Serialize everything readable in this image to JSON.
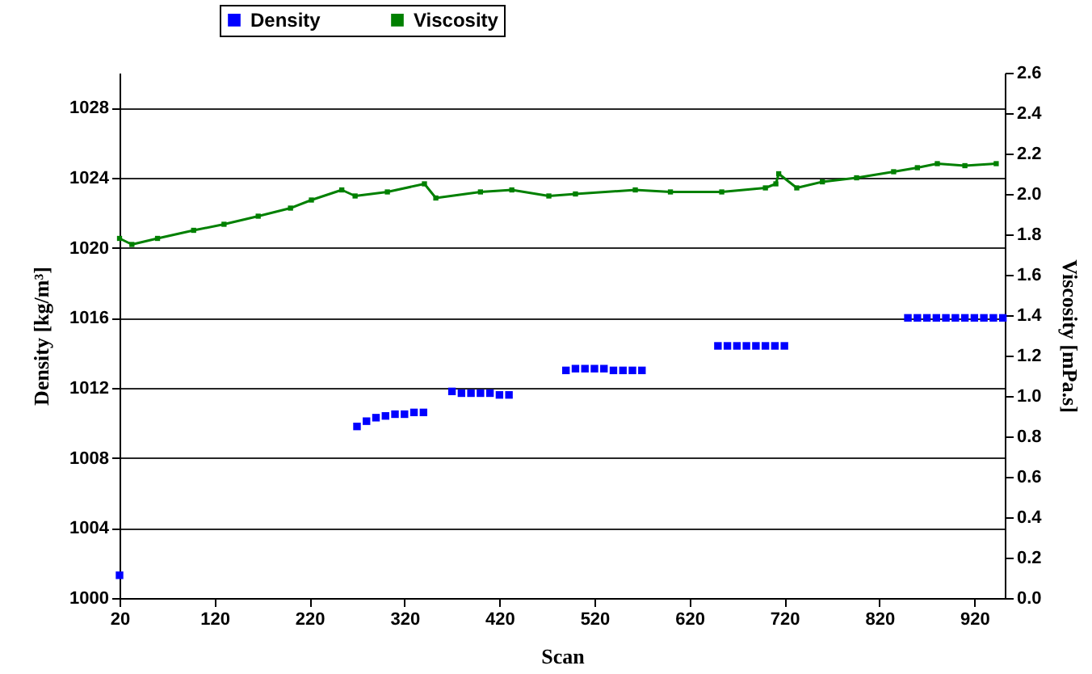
{
  "chart_data": {
    "type": "scatter",
    "xlabel": "Scan",
    "ylabel": "Density [kg/m³]",
    "y2label": "Viscosity [mPa.s]",
    "xlim": [
      20,
      952
    ],
    "xticks": [
      20,
      120,
      220,
      320,
      420,
      520,
      620,
      720,
      820,
      920
    ],
    "ylim": [
      1000,
      1030
    ],
    "yticks": [
      1000,
      1004,
      1008,
      1012,
      1016,
      1020,
      1024,
      1028
    ],
    "y2lim": [
      0,
      2.6
    ],
    "y2ticks": [
      {
        "value": 0,
        "label": "0.0"
      },
      0.2,
      0.4,
      0.6,
      0.8,
      {
        "value": 1,
        "label": "1.0"
      },
      1.2,
      1.4,
      1.6,
      1.8,
      {
        "value": 2,
        "label": "2.0"
      },
      2.2,
      2.4,
      2.6
    ],
    "grid": "y",
    "legend": "top",
    "marker": "square",
    "series": [
      {
        "name": "Density",
        "color": "#0000ff",
        "x": [
          20,
          270,
          280,
          290,
          300,
          310,
          320,
          330,
          340,
          370,
          380,
          390,
          400,
          410,
          420,
          430,
          490,
          500,
          510,
          520,
          530,
          540,
          550,
          560,
          570,
          650,
          660,
          670,
          680,
          690,
          700,
          710,
          720,
          850,
          860,
          870,
          880,
          890,
          900,
          910,
          920,
          930,
          940,
          950
        ],
        "values": [
          1001.3,
          1009.8,
          1010.1,
          1010.3,
          1010.4,
          1010.5,
          1010.5,
          1010.6,
          1010.6,
          1011.8,
          1011.7,
          1011.7,
          1011.7,
          1011.7,
          1011.6,
          1011.6,
          1013.0,
          1013.1,
          1013.1,
          1013.1,
          1013.1,
          1013.0,
          1013.0,
          1013.0,
          1013.0,
          1014.4,
          1014.4,
          1014.4,
          1014.4,
          1014.4,
          1014.4,
          1014.4,
          1014.4,
          1016.0,
          1016.0,
          1016.0,
          1016.0,
          1016.0,
          1016.0,
          1016.0,
          1016.0,
          1016.0,
          1016.0,
          1016.0
        ]
      },
      {
        "name": "Viscosity",
        "type": "line",
        "axis": "y2",
        "color": "#008000",
        "x": [
          20,
          33,
          60,
          98,
          130,
          166,
          200,
          222,
          254,
          268,
          302,
          341,
          353,
          400,
          433,
          472,
          500,
          563,
          600,
          654,
          700,
          711,
          714,
          733,
          760,
          796,
          835,
          860,
          881,
          910,
          943
        ],
        "values": [
          1.78,
          1.75,
          1.78,
          1.82,
          1.85,
          1.89,
          1.93,
          1.97,
          2.02,
          1.99,
          2.01,
          2.05,
          1.98,
          2.01,
          2.02,
          1.99,
          2.0,
          2.02,
          2.01,
          2.01,
          2.03,
          2.05,
          2.1,
          2.03,
          2.06,
          2.08,
          2.11,
          2.13,
          2.15,
          2.14,
          2.15
        ]
      }
    ]
  }
}
